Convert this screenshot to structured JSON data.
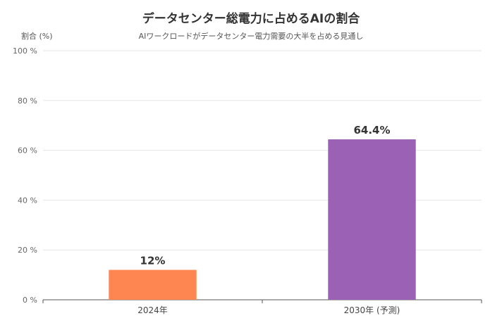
{
  "chart_data": {
    "type": "bar",
    "title": "データセンター総電力に占めるAIの割合",
    "subtitle": "AIワークロードがデータセンター電力需要の大半を占める見通し",
    "ylabel": "割合 (%)",
    "xlabel": "",
    "categories": [
      "2024年",
      "2030年 (予測)"
    ],
    "values": [
      12,
      64.4
    ],
    "data_labels": [
      "12%",
      "64.4%"
    ],
    "colors": [
      "#fd8651",
      "#9b61b5"
    ],
    "ylim": [
      0,
      100
    ],
    "yticks": [
      0,
      20,
      40,
      60,
      80,
      100
    ],
    "ytick_labels": [
      "0 %",
      "20 %",
      "40 %",
      "60 %",
      "80 %",
      "100 %"
    ],
    "grid": true,
    "legend": "none"
  }
}
